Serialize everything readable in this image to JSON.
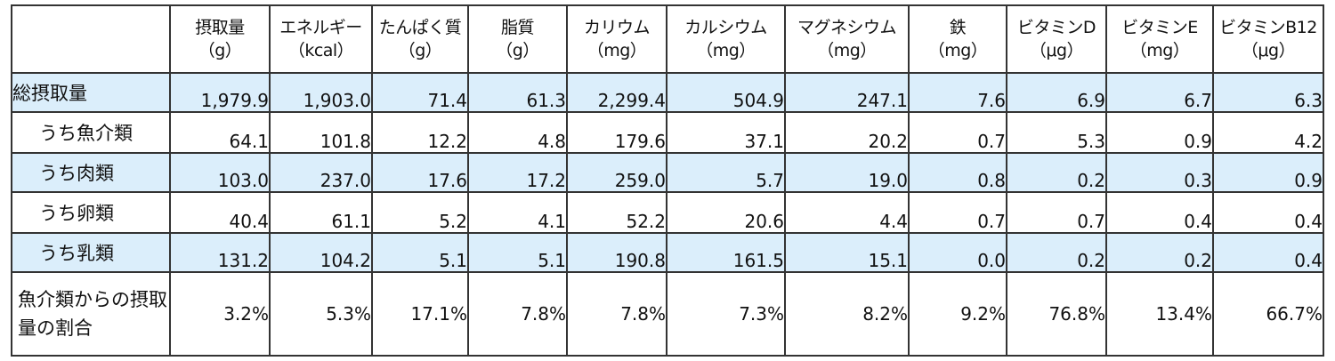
{
  "columns": [
    {
      "name": "摂取量",
      "unit": "（g）"
    },
    {
      "name": "エネルギー",
      "unit": "（kcal）"
    },
    {
      "name": "たんぱく質",
      "unit": "（g）"
    },
    {
      "name": "脂質",
      "unit": "（g）"
    },
    {
      "name": "カリウム",
      "unit": "（mg）"
    },
    {
      "name": "カルシウム",
      "unit": "（mg）"
    },
    {
      "name": "マグネシウム",
      "unit": "（mg）"
    },
    {
      "name": "鉄",
      "unit": "（mg）"
    },
    {
      "name": "ビタミンD",
      "unit": "（μg）"
    },
    {
      "name": "ビタミンE",
      "unit": "（mg）"
    },
    {
      "name": "ビタミンB12",
      "unit": "（μg）"
    }
  ],
  "rows": [
    {
      "label": "総摂取量",
      "values": [
        "1,979.9",
        "1,903.0",
        "71.4",
        "61.3",
        "2,299.4",
        "504.9",
        "247.1",
        "7.6",
        "6.9",
        "6.7",
        "6.3"
      ]
    },
    {
      "label": "うち魚介類",
      "values": [
        "64.1",
        "101.8",
        "12.2",
        "4.8",
        "179.6",
        "37.1",
        "20.2",
        "0.7",
        "5.3",
        "0.9",
        "4.2"
      ]
    },
    {
      "label": "うち肉類",
      "values": [
        "103.0",
        "237.0",
        "17.6",
        "17.2",
        "259.0",
        "5.7",
        "19.0",
        "0.8",
        "0.2",
        "0.3",
        "0.9"
      ]
    },
    {
      "label": "うち卵類",
      "values": [
        "40.4",
        "61.1",
        "5.2",
        "4.1",
        "52.2",
        "20.6",
        "4.4",
        "0.7",
        "0.7",
        "0.4",
        "0.4"
      ]
    },
    {
      "label": "うち乳類",
      "values": [
        "131.2",
        "104.2",
        "5.1",
        "5.1",
        "190.8",
        "161.5",
        "15.1",
        "0.0",
        "0.2",
        "0.2",
        "0.4"
      ]
    },
    {
      "label": "魚介類からの摂取量の割合",
      "values": [
        "3.2%",
        "5.3%",
        "17.1%",
        "7.8%",
        "7.8%",
        "7.3%",
        "8.2%",
        "9.2%",
        "76.8%",
        "13.4%",
        "66.7%"
      ]
    }
  ],
  "colors": {
    "highlight_row": "#dbeefb",
    "border": "#333333"
  }
}
